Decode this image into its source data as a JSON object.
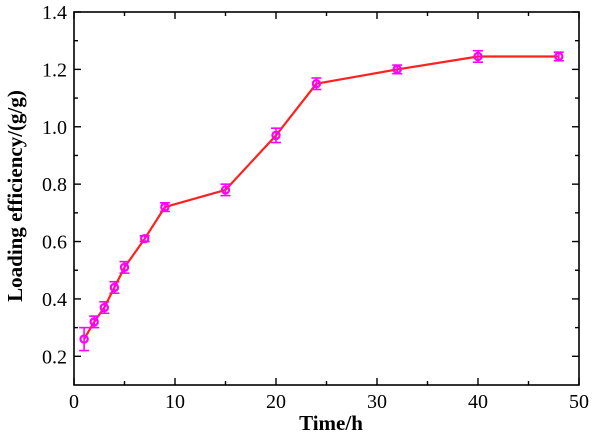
{
  "chart_data": {
    "type": "line",
    "title": "",
    "xlabel": "Time/h",
    "ylabel": "Loading efficiency/(g/g)",
    "xlim": [
      0,
      50
    ],
    "ylim": [
      0.1,
      1.4
    ],
    "x_ticks": [
      0,
      10,
      20,
      30,
      40,
      50
    ],
    "y_ticks": [
      0.2,
      0.4,
      0.6,
      0.8,
      1.0,
      1.2,
      1.4
    ],
    "x_tick_labels": [
      "0",
      "10",
      "20",
      "30",
      "40",
      "50"
    ],
    "y_tick_labels": [
      "0.2",
      "0.4",
      "0.6",
      "0.8",
      "1.0",
      "1.2",
      "1.4"
    ],
    "grid": false,
    "legend": "none",
    "line_color": "#ff2020",
    "marker_color": "#ff00ff",
    "series": [
      {
        "x": [
          1,
          2,
          3,
          4,
          5,
          7,
          9,
          15,
          20,
          24,
          32,
          40,
          48
        ],
        "values": [
          0.26,
          0.32,
          0.37,
          0.44,
          0.51,
          0.61,
          0.72,
          0.78,
          0.97,
          1.15,
          1.2,
          1.245,
          1.245
        ],
        "errors": [
          0.04,
          0.02,
          0.02,
          0.02,
          0.02,
          0.01,
          0.015,
          0.02,
          0.025,
          0.02,
          0.015,
          0.02,
          0.015
        ]
      }
    ]
  }
}
